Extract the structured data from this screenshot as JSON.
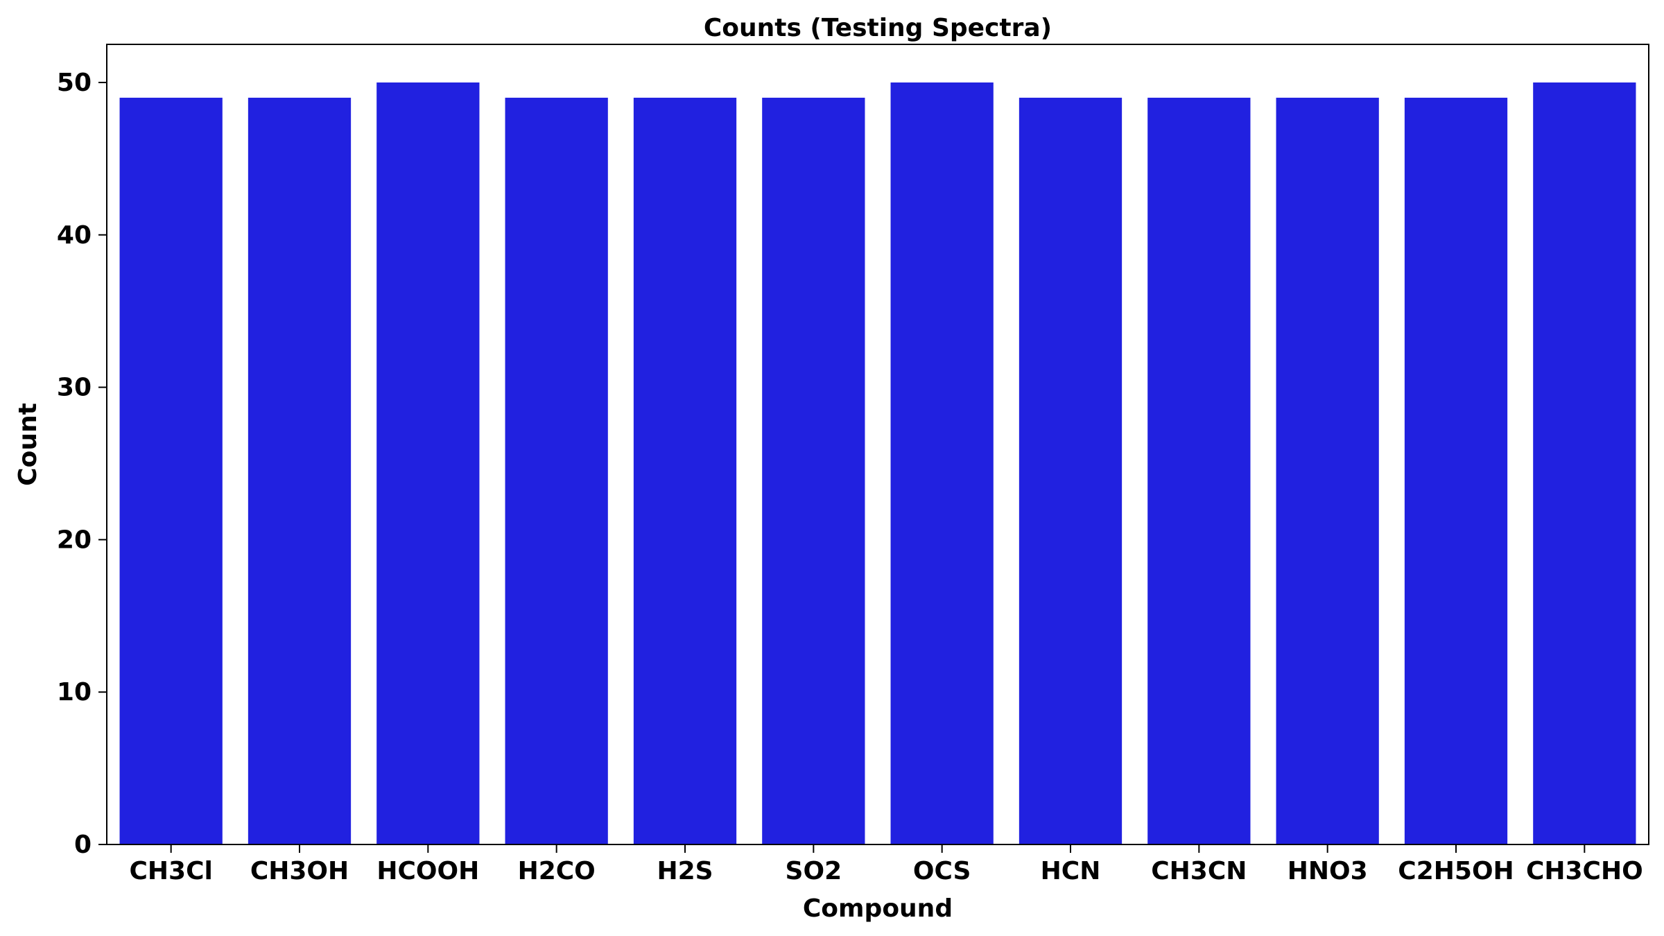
{
  "chart_data": {
    "type": "bar",
    "title": "Counts (Testing Spectra)",
    "xlabel": "Compound",
    "ylabel": "Count",
    "categories": [
      "CH3Cl",
      "CH3OH",
      "HCOOH",
      "H2CO",
      "H2S",
      "SO2",
      "OCS",
      "HCN",
      "CH3CN",
      "HNO3",
      "C2H5OH",
      "CH3CHO"
    ],
    "values": [
      49,
      49,
      50,
      49,
      49,
      49,
      50,
      49,
      49,
      49,
      49,
      50
    ],
    "ylim": [
      0,
      52.5
    ],
    "yticks": [
      0,
      10,
      20,
      30,
      40,
      50
    ],
    "grid": false,
    "legend": "none",
    "colors": {
      "bar": "#2121e0",
      "axis": "#000000",
      "background": "#ffffff"
    }
  }
}
